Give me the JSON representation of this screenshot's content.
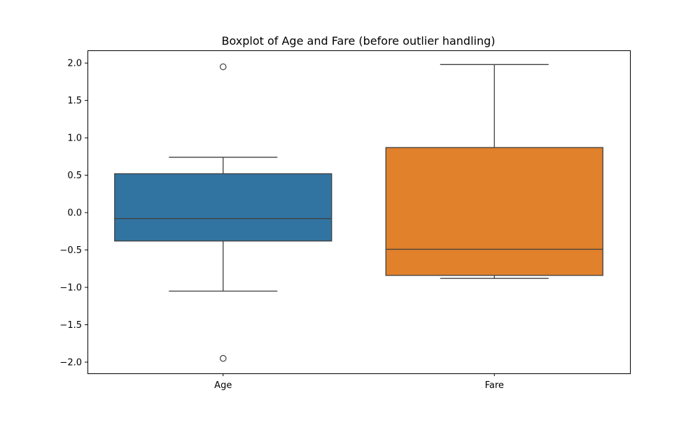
{
  "chart_data": {
    "type": "box",
    "title": "Boxplot of Age and Fare (before outlier handling)",
    "xlabel": "",
    "ylabel": "",
    "categories": [
      "Age",
      "Fare"
    ],
    "ylim": [
      -2.15,
      2.17
    ],
    "yticks": [
      2.0,
      1.5,
      1.0,
      0.5,
      0.0,
      -0.5,
      -1.0,
      -1.5,
      -2.0
    ],
    "ytick_labels": [
      "2.0",
      "1.5",
      "1.0",
      "0.5",
      "0.0",
      "−0.5",
      "−1.0",
      "−1.5",
      "−2.0"
    ],
    "grid": false,
    "boxes": [
      {
        "category": "Age",
        "whisker_low": -1.05,
        "q1": -0.38,
        "median": -0.08,
        "q3": 0.52,
        "whisker_high": 0.74,
        "outliers": [
          1.95,
          -1.95
        ],
        "color": "#3274a1"
      },
      {
        "category": "Fare",
        "whisker_low": -0.88,
        "q1": -0.84,
        "median": -0.49,
        "q3": 0.87,
        "whisker_high": 1.98,
        "outliers": [],
        "color": "#e1812c"
      }
    ]
  }
}
